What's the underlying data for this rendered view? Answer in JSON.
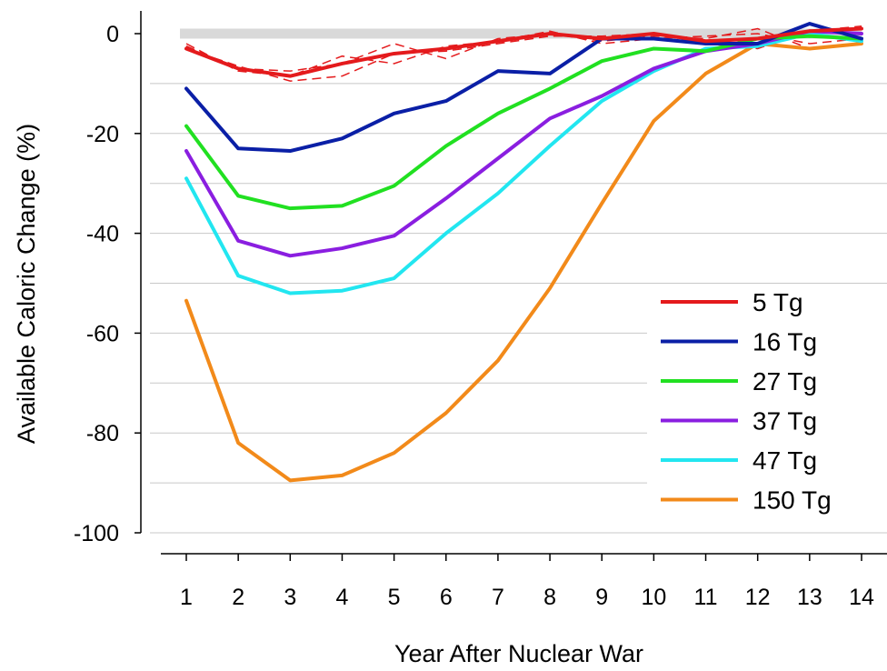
{
  "chart_data": {
    "type": "line",
    "xlabel": "Year After Nuclear War",
    "ylabel": "Available Caloric Change (%)",
    "x": [
      1,
      2,
      3,
      4,
      5,
      6,
      7,
      8,
      9,
      10,
      11,
      12,
      13,
      14
    ],
    "xlim": [
      1,
      14
    ],
    "ylim": [
      -100,
      0
    ],
    "yticks": [
      0,
      -20,
      -40,
      -60,
      -80,
      -100
    ],
    "grid": "horizontal",
    "legend_position": "lower-right",
    "shaded_band": [
      -1,
      1
    ],
    "series": [
      {
        "name": "5 Tg",
        "color": "#e41a1c",
        "values": [
          -3,
          -7,
          -8.5,
          -6,
          -4,
          -3,
          -1.5,
          0,
          -1,
          0,
          -1.5,
          -1,
          0.5,
          1
        ]
      },
      {
        "name": "16 Tg",
        "color": "#0a1fa6",
        "values": [
          -11,
          -23,
          -23.5,
          -21,
          -16,
          -13.5,
          -7.5,
          -8,
          -1,
          -1,
          -2,
          -2,
          2,
          -1
        ]
      },
      {
        "name": "27 Tg",
        "color": "#21e021",
        "values": [
          -18.5,
          -32.5,
          -35,
          -34.5,
          -30.5,
          -22.5,
          -16,
          -11,
          -5.5,
          -3,
          -3.5,
          -1,
          -0.5,
          -1
        ]
      },
      {
        "name": "37 Tg",
        "color": "#8a1ee0",
        "values": [
          -23.5,
          -41.5,
          -44.5,
          -43,
          -40.5,
          -33,
          -25,
          -17,
          -12.5,
          -7,
          -3.5,
          -2,
          0.5,
          0
        ]
      },
      {
        "name": "47 Tg",
        "color": "#22e6f0",
        "values": [
          -29,
          -48.5,
          -52,
          -51.5,
          -49,
          -40,
          -32,
          -22.5,
          -13.5,
          -7.5,
          -3,
          -2.5,
          0,
          -1.5
        ]
      },
      {
        "name": "150 Tg",
        "color": "#f28a1a",
        "values": [
          -53.5,
          -82,
          -89.5,
          -88.5,
          -84,
          -76,
          -65.5,
          -51,
          -34,
          -17.5,
          -8,
          -2,
          -3,
          -2
        ]
      }
    ],
    "dashed_series_5tg": [
      [
        -2.5,
        -7,
        -7.5,
        -6,
        -2,
        -5,
        -1,
        0,
        -1.5,
        -0.5,
        -1,
        1,
        -3,
        -2
      ],
      [
        -3,
        -6.5,
        -9.5,
        -8.5,
        -4,
        -3.5,
        -2,
        -0.5,
        -0.5,
        0,
        -2,
        -3,
        0.5,
        1.5
      ],
      [
        -2,
        -7.5,
        -8.5,
        -4.5,
        -6,
        -2.5,
        -1.5,
        0.5,
        -2,
        -1,
        -0.5,
        0,
        -2,
        -1
      ]
    ]
  }
}
